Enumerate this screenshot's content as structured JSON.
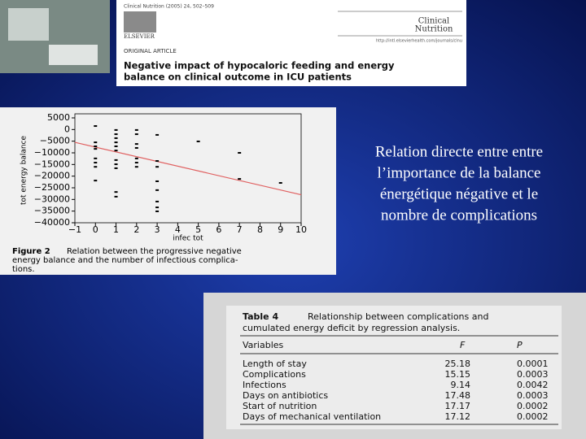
{
  "article": {
    "citation": "Clinical Nutrition (2005) 24, 502–509",
    "publisher": "ELSEVIER",
    "journal_lines": [
      "Clinical",
      "Nutrition"
    ],
    "url": "http://intl.elsevierhealth.com/journals/clnu",
    "section": "ORIGINAL ARTICLE",
    "title_lines": [
      "Negative impact of hypocaloric feeding and energy",
      "balance on clinical outcome in ICU patients"
    ]
  },
  "chart_data": {
    "type": "scatter",
    "x_label": "infec tot",
    "y_label": "tot energy balance",
    "x": [
      0,
      0,
      0,
      0,
      0,
      0,
      0,
      0,
      1,
      1,
      1,
      1,
      1,
      1,
      1,
      1,
      1,
      1,
      1,
      2,
      2,
      2,
      2,
      2,
      2,
      2,
      3,
      3,
      3,
      3,
      3,
      3,
      3,
      3,
      5,
      7,
      7,
      9
    ],
    "y": [
      1500,
      -5500,
      -7200,
      -8300,
      -12400,
      -14200,
      -16000,
      -21900,
      -200,
      -2000,
      -3700,
      -5500,
      -7200,
      -9000,
      -13100,
      -14900,
      -16600,
      -26800,
      -28800,
      -200,
      -2000,
      -6200,
      -7900,
      -12400,
      -14200,
      -16000,
      -2300,
      -13500,
      -16000,
      -22200,
      -26000,
      -30900,
      -33400,
      -35100,
      -5100,
      -10000,
      -21200,
      -22900
    ],
    "color": "#000000",
    "fit": {
      "x": [
        -1,
        10
      ],
      "y": [
        -5500,
        -28000
      ],
      "color": "#e06060"
    },
    "xlim": [
      -1,
      10
    ],
    "ylim": [
      -40000,
      5000
    ],
    "xticks": [
      {
        "value": -1,
        "label": "−1"
      },
      0,
      1,
      2,
      3,
      4,
      5,
      6,
      7,
      8,
      9,
      10
    ],
    "yticks": [
      5000,
      0,
      {
        "value": -5000,
        "label": "−5000"
      },
      {
        "value": -10000,
        "label": "−10000"
      },
      {
        "value": -15000,
        "label": "−15000"
      },
      {
        "value": -20000,
        "label": "−20000"
      },
      {
        "value": -25000,
        "label": "−25000"
      },
      {
        "value": -30000,
        "label": "−30000"
      },
      {
        "value": -35000,
        "label": "−35000"
      },
      {
        "value": -40000,
        "label": "−40000"
      }
    ],
    "caption_label": "Figure 2",
    "caption_lines": [
      "Relation between the progressive negative",
      "energy balance and the number of infectious complica-",
      "tions."
    ]
  },
  "slide_text_lines": [
    "Relation directe entre entre",
    "l’importance de la balance",
    "énergétique négative et le",
    "nombre de complications"
  ],
  "table": {
    "label": "Table 4",
    "title_lines": [
      "Relationship between complications and",
      "cumulated energy deficit by regression analysis."
    ],
    "header": [
      "Variables",
      "F",
      "P"
    ],
    "rows": [
      [
        "Length of stay",
        "25.18",
        "0.0001"
      ],
      [
        "Complications",
        "15.15",
        "0.0003"
      ],
      [
        "Infections",
        "9.14",
        "0.0042"
      ],
      [
        "Days on antibiotics",
        "17.48",
        "0.0003"
      ],
      [
        "Start of nutrition",
        "17.17",
        "0.0002"
      ],
      [
        "Days of mechanical ventilation",
        "17.12",
        "0.0002"
      ]
    ]
  }
}
